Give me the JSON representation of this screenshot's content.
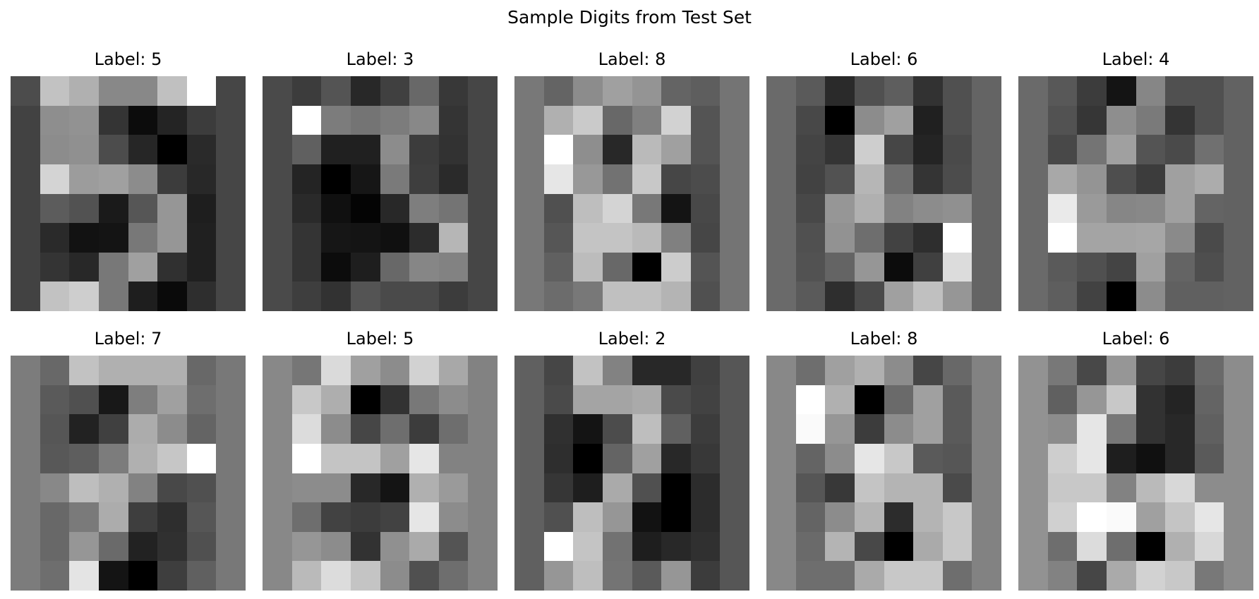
{
  "figure": {
    "title": "Sample Digits from Test Set"
  },
  "chart_data": {
    "type": "heatmap",
    "title": "Sample Digits from Test Set",
    "colormap": "gray",
    "value_range": [
      0,
      255
    ],
    "layout": {
      "rows": 2,
      "cols": 5
    },
    "panels": [
      {
        "title": "Label: 5",
        "pixels": [
          [
            76,
            194,
            176,
            136,
            136,
            192,
            255,
            70
          ],
          [
            66,
            142,
            146,
            52,
            12,
            36,
            60,
            70
          ],
          [
            66,
            140,
            144,
            76,
            38,
            0,
            42,
            70
          ],
          [
            66,
            212,
            156,
            160,
            140,
            60,
            40,
            70
          ],
          [
            66,
            92,
            82,
            26,
            86,
            150,
            30,
            70
          ],
          [
            66,
            42,
            18,
            20,
            120,
            150,
            32,
            70
          ],
          [
            66,
            52,
            40,
            120,
            160,
            48,
            32,
            70
          ],
          [
            66,
            194,
            206,
            120,
            30,
            10,
            46,
            70
          ]
        ]
      },
      {
        "title": "Label: 3",
        "pixels": [
          [
            74,
            60,
            84,
            40,
            64,
            104,
            56,
            70
          ],
          [
            74,
            255,
            124,
            116,
            124,
            136,
            52,
            70
          ],
          [
            74,
            96,
            32,
            32,
            140,
            60,
            50,
            70
          ],
          [
            74,
            36,
            0,
            22,
            122,
            62,
            42,
            70
          ],
          [
            74,
            42,
            16,
            4,
            40,
            126,
            116,
            70
          ],
          [
            74,
            52,
            22,
            20,
            16,
            44,
            182,
            70
          ],
          [
            74,
            52,
            12,
            30,
            104,
            134,
            130,
            70
          ],
          [
            74,
            62,
            50,
            84,
            74,
            74,
            60,
            70
          ]
        ]
      },
      {
        "title": "Label: 8",
        "pixels": [
          [
            120,
            100,
            140,
            160,
            148,
            100,
            94,
            116
          ],
          [
            120,
            176,
            202,
            104,
            128,
            210,
            84,
            116
          ],
          [
            120,
            255,
            142,
            40,
            186,
            160,
            84,
            116
          ],
          [
            120,
            230,
            152,
            114,
            200,
            70,
            76,
            116
          ],
          [
            120,
            80,
            190,
            212,
            120,
            20,
            72,
            116
          ],
          [
            120,
            86,
            196,
            196,
            186,
            128,
            70,
            116
          ],
          [
            120,
            96,
            188,
            104,
            0,
            204,
            84,
            116
          ],
          [
            120,
            108,
            120,
            192,
            192,
            180,
            80,
            116
          ]
        ]
      },
      {
        "title": "Label: 6",
        "pixels": [
          [
            106,
            90,
            42,
            80,
            94,
            50,
            80,
            100
          ],
          [
            106,
            72,
            0,
            140,
            160,
            32,
            80,
            100
          ],
          [
            106,
            68,
            52,
            206,
            70,
            36,
            74,
            100
          ],
          [
            106,
            66,
            82,
            182,
            110,
            52,
            76,
            100
          ],
          [
            106,
            72,
            150,
            176,
            130,
            140,
            144,
            100
          ],
          [
            106,
            80,
            146,
            110,
            66,
            46,
            255,
            100
          ],
          [
            106,
            82,
            100,
            150,
            12,
            64,
            220,
            100
          ],
          [
            106,
            90,
            46,
            74,
            160,
            192,
            150,
            100
          ]
        ]
      },
      {
        "title": "Label: 4",
        "pixels": [
          [
            106,
            88,
            60,
            20,
            134,
            80,
            80,
            98
          ],
          [
            106,
            82,
            54,
            142,
            122,
            52,
            80,
            98
          ],
          [
            106,
            72,
            116,
            160,
            84,
            74,
            112,
            98
          ],
          [
            106,
            168,
            148,
            78,
            60,
            160,
            172,
            98
          ],
          [
            106,
            234,
            154,
            134,
            136,
            160,
            100,
            98
          ],
          [
            106,
            255,
            164,
            164,
            166,
            138,
            74,
            98
          ],
          [
            106,
            90,
            80,
            68,
            160,
            100,
            78,
            98
          ],
          [
            106,
            94,
            66,
            0,
            140,
            96,
            96,
            98
          ]
        ]
      },
      {
        "title": "Label: 7",
        "pixels": [
          [
            124,
            104,
            194,
            176,
            176,
            176,
            104,
            120
          ],
          [
            124,
            90,
            80,
            24,
            126,
            160,
            110,
            120
          ],
          [
            124,
            86,
            34,
            64,
            172,
            140,
            100,
            120
          ],
          [
            124,
            88,
            94,
            124,
            176,
            198,
            255,
            120
          ],
          [
            124,
            136,
            190,
            176,
            130,
            72,
            80,
            120
          ],
          [
            124,
            104,
            122,
            172,
            62,
            46,
            86,
            120
          ],
          [
            124,
            104,
            150,
            106,
            34,
            48,
            80,
            120
          ],
          [
            124,
            110,
            228,
            20,
            0,
            62,
            96,
            120
          ]
        ]
      },
      {
        "title": "Label: 5",
        "pixels": [
          [
            136,
            118,
            218,
            160,
            140,
            210,
            168,
            130
          ],
          [
            136,
            200,
            174,
            0,
            50,
            120,
            140,
            130
          ],
          [
            136,
            220,
            140,
            70,
            110,
            60,
            110,
            130
          ],
          [
            136,
            255,
            196,
            196,
            160,
            230,
            130,
            130
          ],
          [
            136,
            140,
            140,
            40,
            20,
            176,
            154,
            130
          ],
          [
            136,
            110,
            66,
            60,
            66,
            230,
            140,
            130
          ],
          [
            136,
            150,
            140,
            50,
            144,
            170,
            84,
            130
          ],
          [
            136,
            186,
            220,
            196,
            140,
            80,
            110,
            130
          ]
        ]
      },
      {
        "title": "Label: 2",
        "pixels": [
          [
            96,
            70,
            194,
            130,
            40,
            40,
            64,
            86
          ],
          [
            96,
            74,
            164,
            164,
            170,
            74,
            66,
            86
          ],
          [
            96,
            48,
            20,
            76,
            190,
            96,
            60,
            86
          ],
          [
            96,
            46,
            0,
            100,
            160,
            40,
            56,
            86
          ],
          [
            96,
            54,
            30,
            170,
            80,
            0,
            44,
            86
          ],
          [
            96,
            80,
            190,
            150,
            18,
            0,
            44,
            86
          ],
          [
            96,
            255,
            196,
            114,
            30,
            40,
            48,
            86
          ],
          [
            96,
            150,
            190,
            116,
            90,
            150,
            60,
            86
          ]
        ]
      },
      {
        "title": "Label: 8",
        "pixels": [
          [
            136,
            110,
            160,
            176,
            140,
            70,
            104,
            130
          ],
          [
            136,
            255,
            176,
            0,
            106,
            160,
            90,
            130
          ],
          [
            136,
            250,
            150,
            60,
            140,
            160,
            90,
            130
          ],
          [
            136,
            100,
            140,
            230,
            200,
            90,
            86,
            130
          ],
          [
            136,
            86,
            56,
            196,
            180,
            180,
            74,
            130
          ],
          [
            136,
            100,
            140,
            180,
            44,
            180,
            200,
            130
          ],
          [
            136,
            106,
            180,
            72,
            0,
            170,
            200,
            130
          ],
          [
            136,
            110,
            110,
            170,
            200,
            200,
            110,
            130
          ]
        ]
      },
      {
        "title": "Label: 6",
        "pixels": [
          [
            146,
            120,
            72,
            150,
            70,
            60,
            106,
            140
          ],
          [
            146,
            96,
            150,
            200,
            50,
            36,
            100,
            140
          ],
          [
            146,
            140,
            230,
            120,
            50,
            40,
            96,
            140
          ],
          [
            146,
            206,
            230,
            30,
            16,
            40,
            90,
            140
          ],
          [
            146,
            200,
            200,
            130,
            186,
            216,
            140,
            140
          ],
          [
            146,
            208,
            255,
            250,
            160,
            196,
            230,
            140
          ],
          [
            146,
            110,
            220,
            110,
            0,
            176,
            216,
            140
          ],
          [
            146,
            130,
            70,
            170,
            210,
            200,
            120,
            140
          ]
        ]
      }
    ]
  }
}
